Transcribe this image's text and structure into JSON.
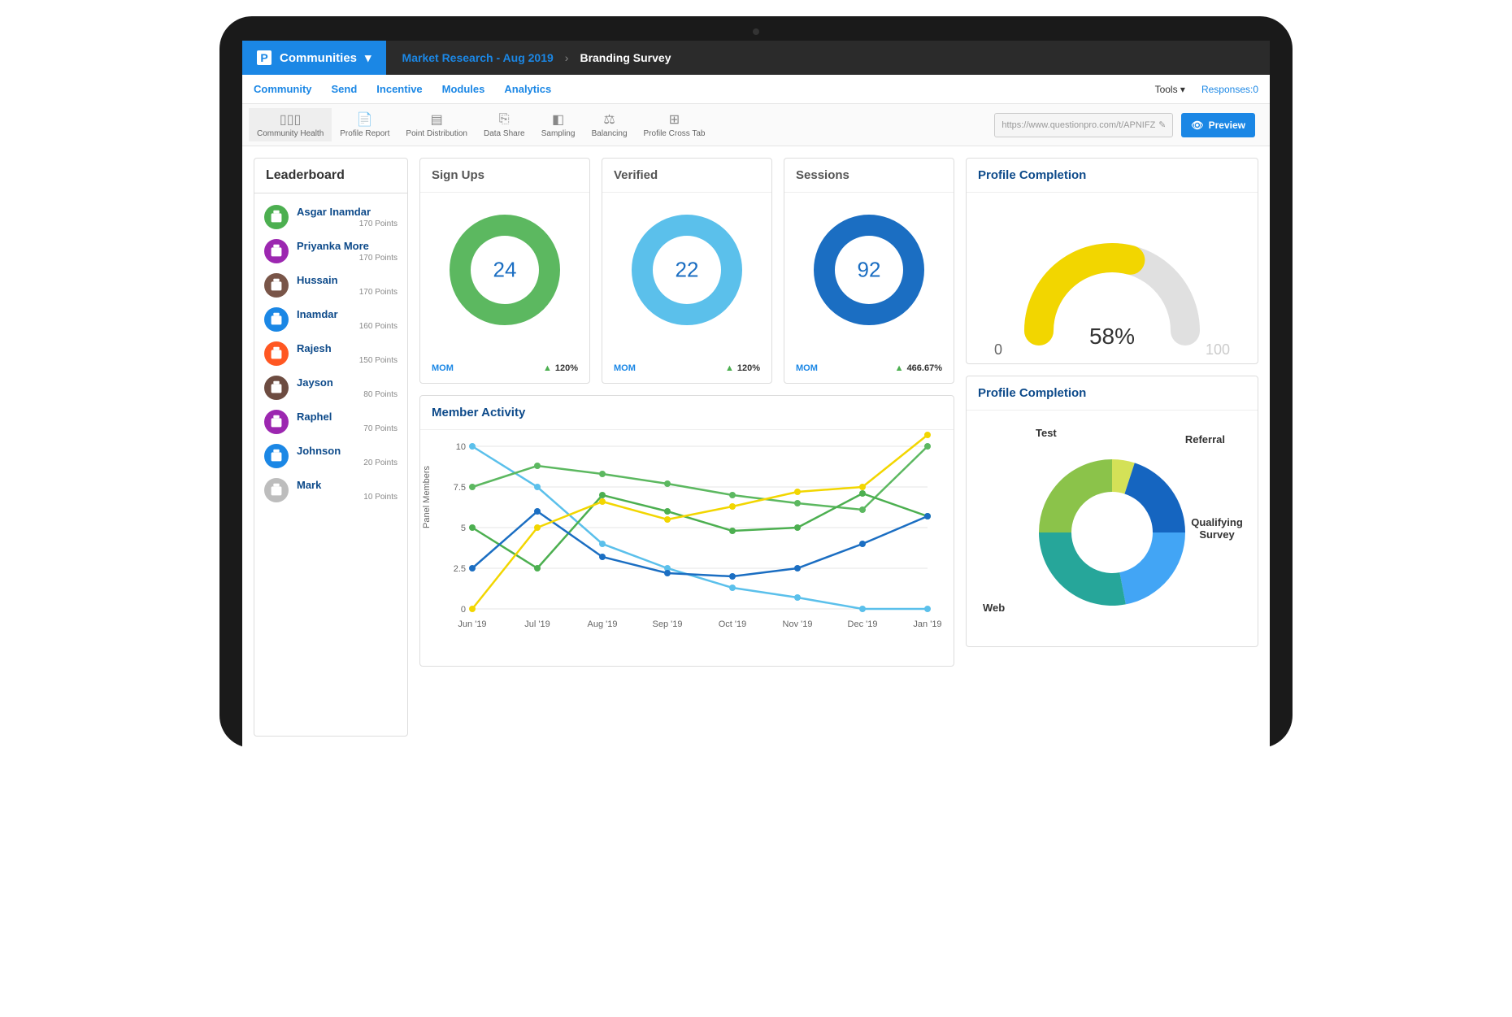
{
  "topbar": {
    "brand": "Communities",
    "breadcrumb1": "Market Research - Aug 2019",
    "breadcrumb2": "Branding Survey"
  },
  "tabs": [
    "Community",
    "Send",
    "Incentive",
    "Modules",
    "Analytics"
  ],
  "tools_label": "Tools",
  "responses_label": "Responses:0",
  "iconbar": {
    "items": [
      {
        "label": "Community Health",
        "glyph": "▯▯▯"
      },
      {
        "label": "Profile Report",
        "glyph": "📄"
      },
      {
        "label": "Point Distribution",
        "glyph": "▤"
      },
      {
        "label": "Data Share",
        "glyph": "⎘"
      },
      {
        "label": "Sampling",
        "glyph": "◧"
      },
      {
        "label": "Balancing",
        "glyph": "⚖"
      },
      {
        "label": "Profile Cross Tab",
        "glyph": "⊞"
      }
    ],
    "url": "https://www.questionpro.com/t/APNIFZ",
    "preview": "Preview"
  },
  "leaderboard": {
    "title": "Leaderboard",
    "members": [
      {
        "name": "Asgar Inamdar",
        "points": "170 Points",
        "color": "#4caf50"
      },
      {
        "name": "Priyanka More",
        "points": "170 Points",
        "color": "#9c27b0"
      },
      {
        "name": "Hussain",
        "points": "170 Points",
        "color": "#795548"
      },
      {
        "name": "Inamdar",
        "points": "160 Points",
        "color": "#1b87e5"
      },
      {
        "name": "Rajesh",
        "points": "150 Points",
        "color": "#ff5722"
      },
      {
        "name": "Jayson",
        "points": "80 Points",
        "color": "#6d4c41"
      },
      {
        "name": "Raphel",
        "points": "70 Points",
        "color": "#9c27b0"
      },
      {
        "name": "Johnson",
        "points": "20 Points",
        "color": "#1b87e5"
      },
      {
        "name": "Mark",
        "points": "10 Points",
        "color": "#bdbdbd"
      }
    ]
  },
  "kpis": [
    {
      "title": "Sign Ups",
      "value": "24",
      "color": "#5cb860",
      "mom": "MOM",
      "pct": "120%"
    },
    {
      "title": "Verified",
      "value": "22",
      "color": "#5bc0eb",
      "mom": "MOM",
      "pct": "120%"
    },
    {
      "title": "Sessions",
      "value": "92",
      "color": "#1b6ec2",
      "mom": "MOM",
      "pct": "466.67%"
    }
  ],
  "gauge": {
    "title": "Profile Completion",
    "value": "58%",
    "percent": 58,
    "min": "0",
    "max": "100",
    "fill_color": "#f2d600",
    "empty_color": "#e0e0e0"
  },
  "activity": {
    "title": "Member Activity",
    "type": "line",
    "ylabel": "Panel Members",
    "categories": [
      "Jun '19",
      "Jul '19",
      "Aug '19",
      "Sep '19",
      "Oct '19",
      "Nov '19",
      "Dec '19",
      "Jan '19"
    ],
    "ylim": [
      0,
      10
    ],
    "ytick_step": 2.5,
    "grid_color": "#e5e5e5",
    "series": [
      {
        "color": "#5bc0eb",
        "values": [
          10,
          7.5,
          4,
          2.5,
          1.3,
          0.7,
          0,
          0
        ]
      },
      {
        "color": "#5cb860",
        "values": [
          7.5,
          8.8,
          8.3,
          7.7,
          7,
          6.5,
          6.1,
          10
        ]
      },
      {
        "color": "#4caf50",
        "values": [
          5,
          2.5,
          7,
          6,
          4.8,
          5,
          7.1,
          5.7
        ]
      },
      {
        "color": "#1b6ec2",
        "values": [
          2.5,
          6,
          3.2,
          2.2,
          2,
          2.5,
          4,
          5.7
        ]
      },
      {
        "color": "#f2d600",
        "values": [
          0,
          5,
          6.6,
          5.5,
          6.3,
          7.2,
          7.5,
          10.7
        ]
      }
    ]
  },
  "pie": {
    "title": "Profile Completion",
    "type": "donut",
    "slices": [
      {
        "label": "Test",
        "value": 5,
        "color": "#d4e157"
      },
      {
        "label": "Referral",
        "value": 20,
        "color": "#1565c0"
      },
      {
        "label": "Qualifying Survey",
        "value": 22,
        "color": "#42a5f5"
      },
      {
        "label": "Web",
        "value": 28,
        "color": "#26a69a"
      },
      {
        "label": "",
        "value": 25,
        "color": "#8bc34a"
      }
    ]
  }
}
